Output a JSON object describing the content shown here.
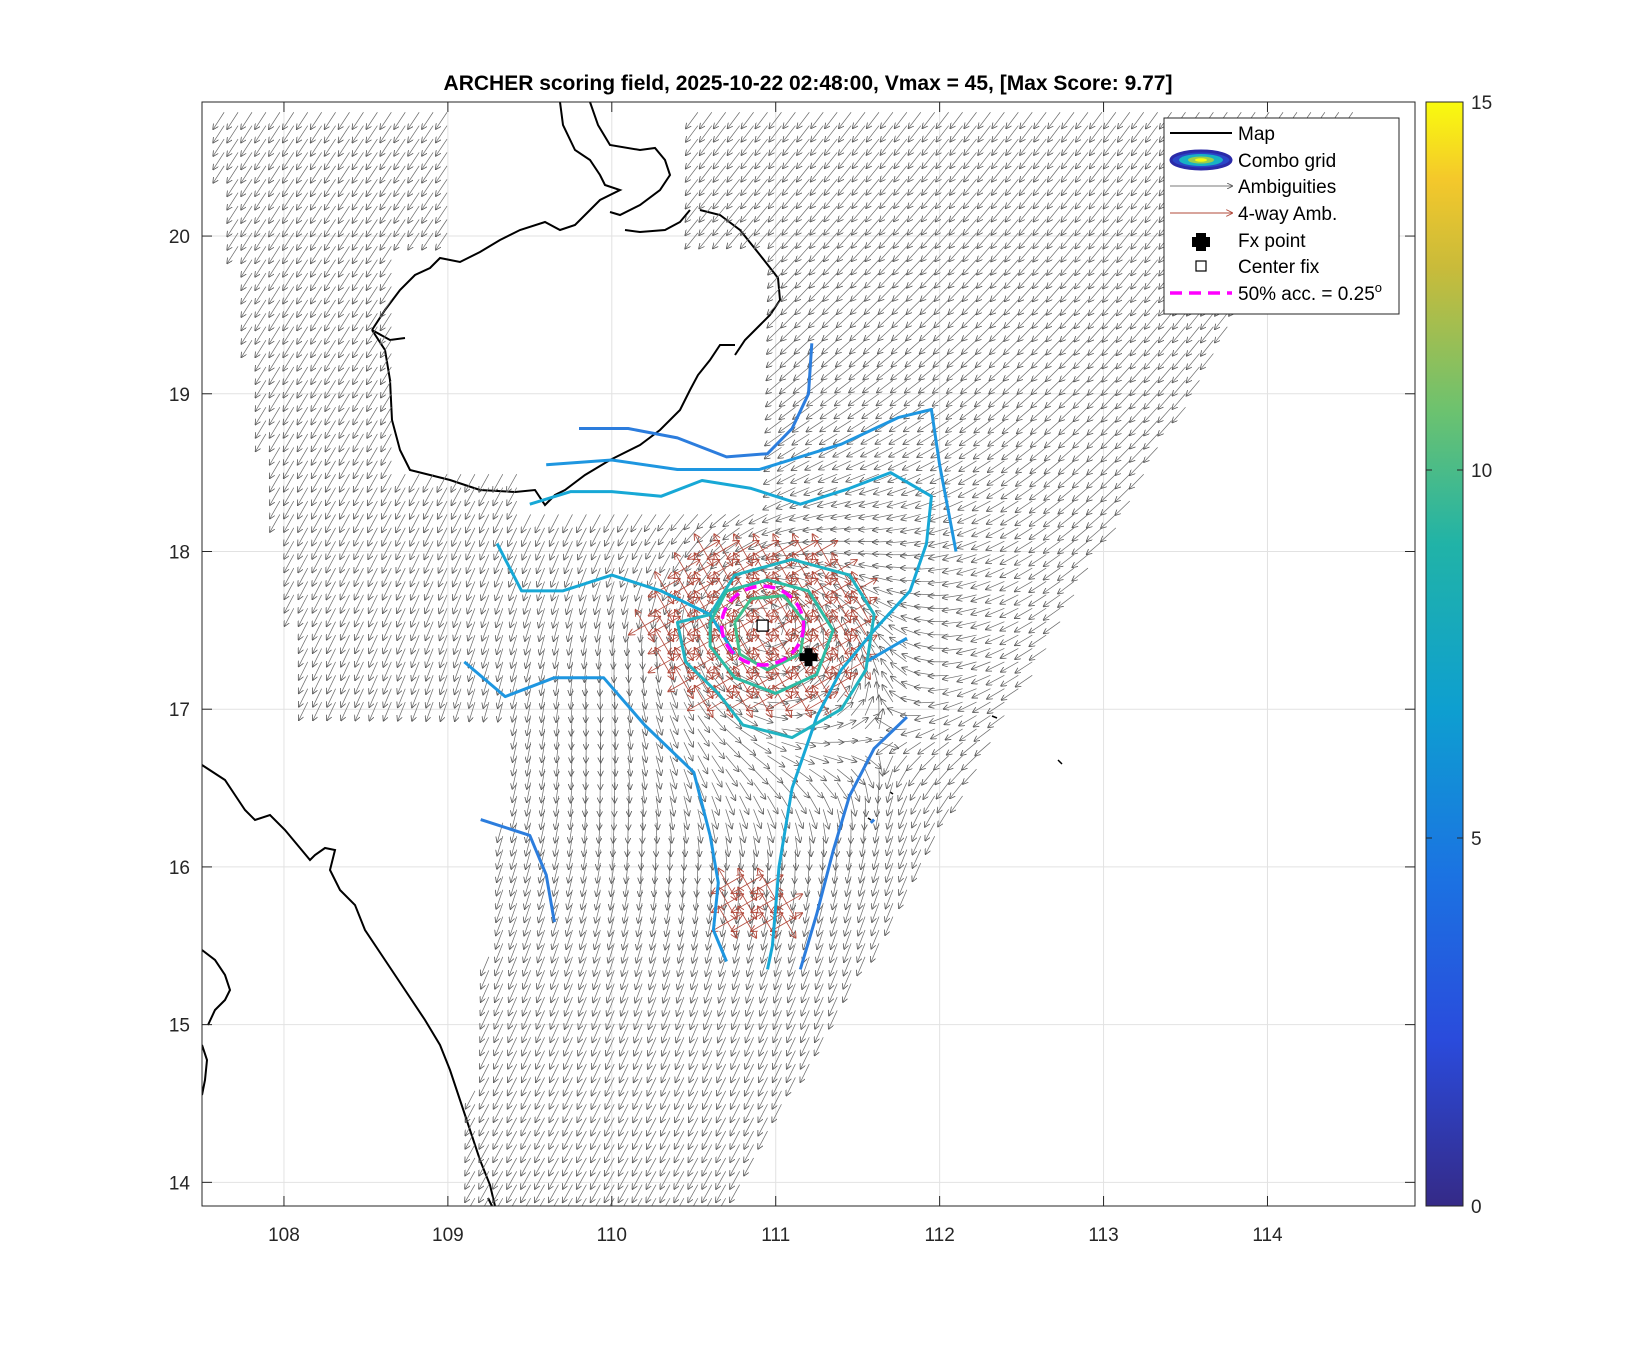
{
  "chart_data": {
    "type": "map-contour-quiver",
    "title": "ARCHER scoring field, 2025-10-22 02:48:00, Vmax = 45, [Max Score: 9.77]",
    "xlabel": "",
    "ylabel": "",
    "xlim": [
      107.5,
      114.9
    ],
    "ylim": [
      13.85,
      20.85
    ],
    "x_ticks": [
      108,
      109,
      110,
      111,
      112,
      113,
      114
    ],
    "y_ticks": [
      14,
      15,
      16,
      17,
      18,
      19,
      20
    ],
    "grid": true,
    "colorbar": {
      "range": [
        0,
        15
      ],
      "ticks": [
        0,
        5,
        10,
        15
      ],
      "colormap": "parula"
    },
    "legend": {
      "placement": "top-right",
      "entries": [
        {
          "label": "Map",
          "style": "line",
          "color": "#000000"
        },
        {
          "label": "Combo grid",
          "style": "contour",
          "color": "#2b2aa8"
        },
        {
          "label": "Ambiguities",
          "style": "arrow",
          "color": "#7a7a7a"
        },
        {
          "label": "4-way Amb.",
          "style": "arrow",
          "color": "#b0483a"
        },
        {
          "label": "Fx point",
          "style": "plus",
          "color": "#000000"
        },
        {
          "label": "Center fix",
          "style": "square",
          "color": "#000000"
        },
        {
          "label": "50% acc. = 0.25",
          "suffix": "o",
          "style": "dashed",
          "color": "#ff00ff"
        }
      ]
    },
    "points": {
      "fx_point": {
        "lon": 111.2,
        "lat": 17.33
      },
      "center_fix": {
        "lon": 110.92,
        "lat": 17.53
      },
      "acc_circle_radius_deg": 0.25
    },
    "contours": [
      {
        "level": 5.0,
        "color": "#2c7ddd",
        "paths": [
          [
            [
              109.8,
              18.78
            ],
            [
              110.1,
              18.78
            ],
            [
              110.4,
              18.72
            ],
            [
              110.7,
              18.6
            ],
            [
              110.95,
              18.62
            ],
            [
              111.1,
              18.78
            ],
            [
              111.2,
              19.0
            ],
            [
              111.22,
              19.32
            ]
          ],
          [
            [
              109.2,
              16.3
            ],
            [
              109.5,
              16.2
            ],
            [
              109.6,
              15.95
            ],
            [
              109.65,
              15.65
            ]
          ],
          [
            [
              111.15,
              15.35
            ],
            [
              111.25,
              15.7
            ],
            [
              111.35,
              16.1
            ],
            [
              111.45,
              16.45
            ],
            [
              111.6,
              16.75
            ],
            [
              111.8,
              16.95
            ]
          ],
          [
            [
              111.6,
              16.3
            ],
            [
              111.58,
              16.28
            ]
          ]
        ]
      },
      {
        "level": 6.0,
        "color": "#1e96e0",
        "paths": [
          [
            [
              109.6,
              18.55
            ],
            [
              110.0,
              18.58
            ],
            [
              110.4,
              18.52
            ],
            [
              110.9,
              18.52
            ],
            [
              111.4,
              18.68
            ],
            [
              111.75,
              18.85
            ],
            [
              111.95,
              18.9
            ],
            [
              112.0,
              18.55
            ],
            [
              112.1,
              18.0
            ]
          ],
          [
            [
              109.1,
              17.3
            ],
            [
              109.35,
              17.08
            ],
            [
              109.65,
              17.2
            ],
            [
              109.95,
              17.2
            ],
            [
              110.2,
              16.9
            ],
            [
              110.5,
              16.6
            ],
            [
              110.6,
              16.2
            ],
            [
              110.65,
              15.9
            ],
            [
              110.62,
              15.6
            ],
            [
              110.7,
              15.4
            ]
          ],
          [
            [
              111.55,
              17.3
            ],
            [
              111.8,
              17.45
            ]
          ]
        ]
      },
      {
        "level": 7.0,
        "color": "#17a8d6",
        "paths": [
          [
            [
              109.5,
              18.3
            ],
            [
              109.75,
              18.38
            ],
            [
              110.0,
              18.38
            ],
            [
              110.3,
              18.35
            ],
            [
              110.55,
              18.45
            ],
            [
              110.85,
              18.4
            ],
            [
              111.15,
              18.3
            ],
            [
              111.45,
              18.4
            ],
            [
              111.7,
              18.5
            ],
            [
              111.95,
              18.35
            ],
            [
              111.92,
              18.05
            ],
            [
              111.82,
              17.75
            ],
            [
              111.6,
              17.5
            ],
            [
              111.4,
              17.25
            ],
            [
              111.25,
              16.95
            ],
            [
              111.1,
              16.5
            ],
            [
              111.02,
              16.0
            ],
            [
              110.98,
              15.5
            ],
            [
              110.95,
              15.35
            ]
          ],
          [
            [
              109.3,
              18.05
            ],
            [
              109.45,
              17.75
            ],
            [
              109.7,
              17.75
            ],
            [
              110.0,
              17.85
            ],
            [
              110.3,
              17.75
            ],
            [
              110.6,
              17.6
            ],
            [
              110.75,
              17.35
            ]
          ]
        ]
      },
      {
        "level": 7.5,
        "color": "#20b4c2",
        "paths": [
          [
            [
              110.6,
              17.6
            ],
            [
              110.75,
              17.85
            ],
            [
              111.1,
              17.95
            ],
            [
              111.45,
              17.85
            ],
            [
              111.6,
              17.6
            ],
            [
              111.55,
              17.25
            ],
            [
              111.4,
              17.0
            ],
            [
              111.1,
              16.82
            ],
            [
              110.8,
              16.9
            ],
            [
              110.65,
              17.1
            ],
            [
              110.45,
              17.3
            ],
            [
              110.4,
              17.55
            ],
            [
              110.6,
              17.6
            ]
          ]
        ]
      },
      {
        "level": 8.5,
        "color": "#2cbca5",
        "paths": [
          [
            [
              110.6,
              17.55
            ],
            [
              110.7,
              17.75
            ],
            [
              110.95,
              17.82
            ],
            [
              111.2,
              17.75
            ],
            [
              111.35,
              17.5
            ],
            [
              111.25,
              17.22
            ],
            [
              111.0,
              17.1
            ],
            [
              110.75,
              17.2
            ],
            [
              110.6,
              17.4
            ],
            [
              110.6,
              17.55
            ]
          ]
        ]
      },
      {
        "level": 9.2,
        "color": "#3ec08e",
        "paths": [
          [
            [
              110.75,
              17.55
            ],
            [
              110.85,
              17.7
            ],
            [
              111.05,
              17.72
            ],
            [
              111.18,
              17.55
            ],
            [
              111.15,
              17.35
            ],
            [
              110.95,
              17.25
            ],
            [
              110.78,
              17.35
            ],
            [
              110.75,
              17.55
            ]
          ]
        ]
      }
    ]
  }
}
